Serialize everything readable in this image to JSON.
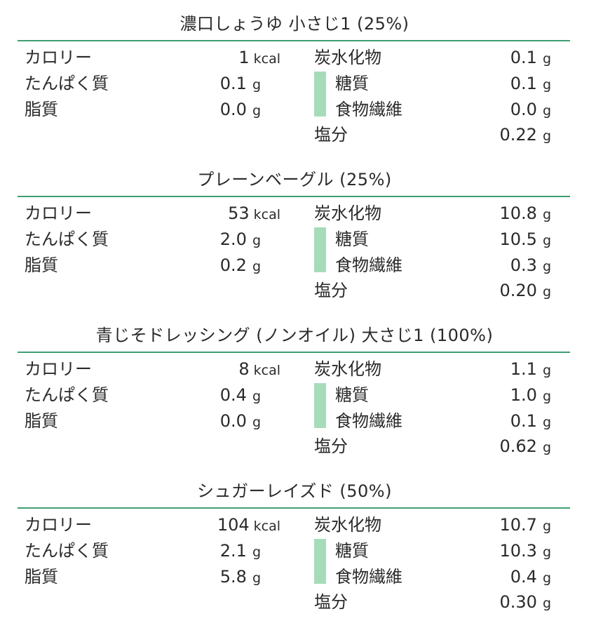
{
  "labels": {
    "calories": "カロリー",
    "protein": "たんぱく質",
    "fat": "脂質",
    "carbs": "炭水化物",
    "sugar": "糖質",
    "fiber": "食物繊維",
    "salt": "塩分",
    "unit_kcal": "kcal",
    "unit_g": "g"
  },
  "colors": {
    "rule": "#3e9e73",
    "sub_bar": "#a7dcb9"
  },
  "items": [
    {
      "title": "濃口しょうゆ 小さじ1 (25%)",
      "calories": "1",
      "protein": "0.1",
      "fat": "0.0",
      "carbs": "0.1",
      "sugar": "0.1",
      "fiber": "0.0",
      "salt": "0.22"
    },
    {
      "title": "プレーンベーグル (25%)",
      "calories": "53",
      "protein": "2.0",
      "fat": "0.2",
      "carbs": "10.8",
      "sugar": "10.5",
      "fiber": "0.3",
      "salt": "0.20"
    },
    {
      "title": "青じそドレッシング (ノンオイル) 大さじ1 (100%)",
      "calories": "8",
      "protein": "0.4",
      "fat": "0.0",
      "carbs": "1.1",
      "sugar": "1.0",
      "fiber": "0.1",
      "salt": "0.62"
    },
    {
      "title": "シュガーレイズド (50%)",
      "calories": "104",
      "protein": "2.1",
      "fat": "5.8",
      "carbs": "10.7",
      "sugar": "10.3",
      "fiber": "0.4",
      "salt": "0.30"
    }
  ]
}
